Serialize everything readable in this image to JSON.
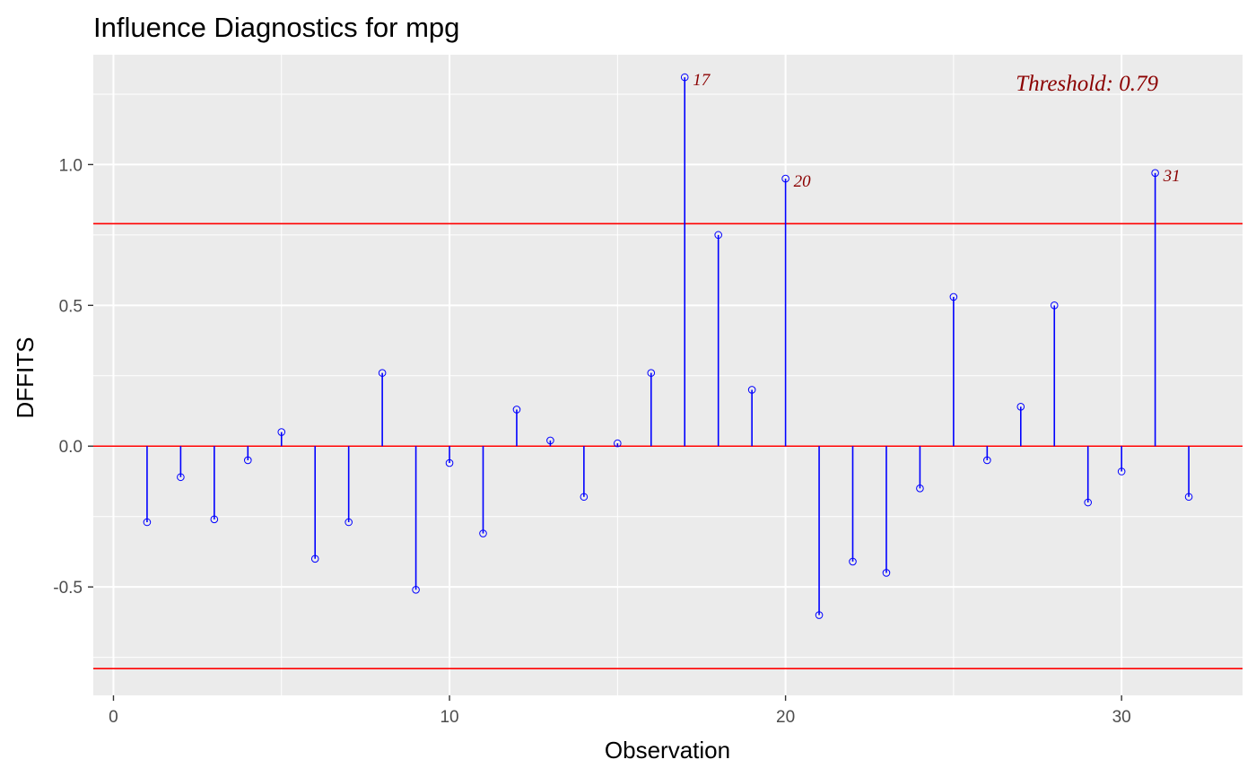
{
  "chart_data": {
    "type": "lollipop",
    "title": "Influence Diagnostics for mpg",
    "xlabel": "Observation",
    "ylabel": "DFFITS",
    "xlim": [
      -0.6,
      33.6
    ],
    "ylim": [
      -0.885,
      1.39
    ],
    "x_ticks": [
      0,
      10,
      20,
      30
    ],
    "y_ticks": [
      -0.5,
      0.0,
      0.5,
      1.0
    ],
    "x_tick_labels": [
      "0",
      "10",
      "20",
      "30"
    ],
    "y_tick_labels": [
      "-0.5",
      "0.0",
      "0.5",
      "1.0"
    ],
    "grid": true,
    "threshold": 0.79,
    "threshold_label": "Threshold: 0.79",
    "reference_lines": [
      0.79,
      0.0,
      -0.79
    ],
    "x": [
      1,
      2,
      3,
      4,
      5,
      6,
      7,
      8,
      9,
      10,
      11,
      12,
      13,
      14,
      15,
      16,
      17,
      18,
      19,
      20,
      21,
      22,
      23,
      24,
      25,
      26,
      27,
      28,
      29,
      30,
      31,
      32
    ],
    "values": [
      -0.27,
      -0.11,
      -0.26,
      -0.05,
      0.05,
      -0.4,
      -0.27,
      0.26,
      -0.51,
      -0.06,
      -0.31,
      0.13,
      0.02,
      -0.18,
      0.01,
      0.26,
      1.31,
      0.75,
      0.2,
      0.95,
      -0.6,
      -0.41,
      -0.45,
      -0.15,
      0.53,
      -0.05,
      0.14,
      0.5,
      -0.2,
      -0.09,
      0.97,
      -0.18
    ],
    "labeled_points": [
      {
        "x": 17,
        "label": "17"
      },
      {
        "x": 20,
        "label": "20"
      },
      {
        "x": 31,
        "label": "31"
      }
    ],
    "colors": {
      "stem": "#0000ff",
      "reference_line": "#ff0000",
      "label": "#8b0000",
      "panel": "#ebebeb",
      "grid": "#ffffff"
    }
  }
}
